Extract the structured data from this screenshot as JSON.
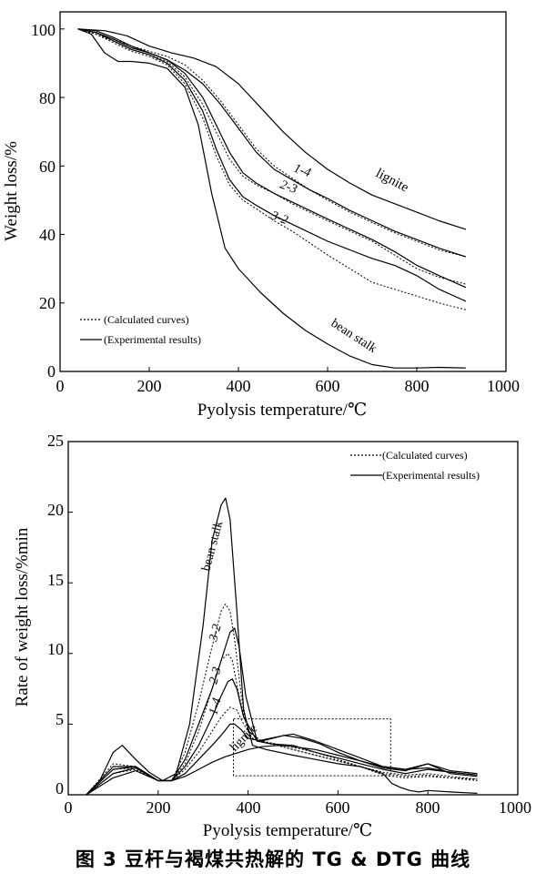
{
  "caption": "图 3   豆杆与褐煤共热解的 TG & DTG 曲线",
  "chart_data": [
    {
      "type": "line",
      "xlabel": "Pyolysis temperature/℃",
      "ylabel": "Weight loss/%",
      "xlim": [
        0,
        1000
      ],
      "ylim": [
        0,
        105
      ],
      "xticks": [
        "0",
        "200",
        "400",
        "600",
        "800",
        "1000"
      ],
      "yticks": [
        "0",
        "20",
        "40",
        "60",
        "80",
        "100"
      ],
      "grid": false,
      "legend_position": "bottom-left",
      "legend": [
        {
          "label": "(Calculated curves)",
          "style": "dotted"
        },
        {
          "label": "(Experimental results)",
          "style": "solid"
        }
      ],
      "series": [
        {
          "name": "lignite",
          "style": "solid",
          "x": [
            40,
            100,
            150,
            200,
            250,
            300,
            350,
            400,
            450,
            500,
            550,
            600,
            650,
            700,
            750,
            800,
            850,
            910
          ],
          "y": [
            100,
            99.5,
            98,
            95,
            93,
            91.5,
            89,
            84,
            77,
            70,
            64,
            59,
            55,
            51.5,
            49,
            46.5,
            44,
            41.5
          ]
        },
        {
          "name": "1-4",
          "style": "solid",
          "x": [
            40,
            80,
            120,
            160,
            200,
            240,
            280,
            320,
            360,
            400,
            440,
            480,
            520,
            560,
            600,
            650,
            700,
            750,
            800,
            850,
            910
          ],
          "y": [
            100,
            99.5,
            97.5,
            95,
            93,
            91,
            88,
            84,
            78,
            71,
            64,
            59,
            56,
            53,
            50.5,
            47,
            44,
            41,
            38.5,
            36,
            33.5
          ]
        },
        {
          "name": "1-4 calc",
          "style": "dotted",
          "x": [
            40,
            80,
            120,
            160,
            200,
            240,
            280,
            320,
            360,
            400,
            440,
            480,
            520,
            560,
            600,
            650,
            700,
            750,
            800,
            850,
            910
          ],
          "y": [
            100,
            99,
            97,
            95,
            93.5,
            92,
            89.5,
            85,
            79,
            72,
            65,
            60,
            56.5,
            53,
            50,
            46.5,
            43.5,
            40.5,
            38,
            35.5,
            33.5
          ]
        },
        {
          "name": "2-3",
          "style": "solid",
          "x": [
            40,
            80,
            120,
            160,
            200,
            240,
            280,
            320,
            350,
            380,
            410,
            440,
            480,
            520,
            560,
            600,
            650,
            700,
            750,
            800,
            850,
            910
          ],
          "y": [
            100,
            99,
            97,
            94.5,
            93,
            91,
            87,
            80,
            72,
            64,
            58,
            55,
            52,
            49.5,
            47,
            44.5,
            41.5,
            38.5,
            35,
            31,
            28,
            24.5
          ]
        },
        {
          "name": "2-3 calc",
          "style": "dotted",
          "x": [
            40,
            80,
            120,
            160,
            200,
            240,
            280,
            320,
            350,
            380,
            410,
            440,
            480,
            520,
            560,
            600,
            650,
            700,
            750,
            800,
            850,
            910
          ],
          "y": [
            100,
            98.5,
            96.5,
            94,
            92.5,
            90.5,
            86,
            78,
            70,
            62,
            57,
            54.5,
            52,
            49,
            46.5,
            44,
            41,
            38,
            34,
            30,
            27.5,
            25.5
          ]
        },
        {
          "name": "3-2",
          "style": "solid",
          "x": [
            40,
            80,
            120,
            160,
            200,
            240,
            280,
            320,
            350,
            380,
            410,
            440,
            480,
            520,
            560,
            600,
            650,
            700,
            750,
            800,
            850,
            910
          ],
          "y": [
            100,
            99,
            96.5,
            94,
            92.5,
            90,
            85,
            76,
            65,
            56,
            51,
            48.5,
            45.5,
            43,
            40.5,
            38,
            35.5,
            33,
            31,
            28,
            24,
            20.5
          ]
        },
        {
          "name": "3-2 calc",
          "style": "dotted",
          "x": [
            40,
            80,
            120,
            160,
            200,
            240,
            280,
            320,
            350,
            380,
            410,
            440,
            480,
            520,
            560,
            600,
            650,
            700,
            750,
            800,
            850,
            910
          ],
          "y": [
            100,
            98.5,
            96,
            93.5,
            92,
            89.5,
            84,
            74,
            63,
            54.5,
            50,
            47.5,
            44,
            41,
            37.5,
            34,
            30,
            26,
            24,
            22,
            20,
            18
          ]
        },
        {
          "name": "bean stalk",
          "style": "solid",
          "x": [
            40,
            70,
            100,
            130,
            160,
            200,
            240,
            280,
            310,
            340,
            370,
            400,
            450,
            500,
            550,
            600,
            650,
            700,
            750,
            800,
            850,
            910
          ],
          "y": [
            100,
            98.5,
            93,
            90.5,
            90.5,
            90,
            88.5,
            83,
            72,
            52,
            36,
            30,
            23,
            17,
            12,
            8,
            4.5,
            2,
            1,
            1,
            1.2,
            1
          ]
        }
      ],
      "curve_labels": [
        "1-4",
        "2-3",
        "3-2",
        "lignite",
        "bean stalk"
      ]
    },
    {
      "type": "line",
      "xlabel": "Pyolysis temperature/℃",
      "ylabel": "Rate of weight loss/%min",
      "xlim": [
        0,
        1000
      ],
      "ylim": [
        0,
        25
      ],
      "xticks": [
        "0",
        "200",
        "400",
        "600",
        "800",
        "1000"
      ],
      "yticks": [
        "0",
        "5",
        "10",
        "15",
        "20",
        "25"
      ],
      "grid": false,
      "legend_position": "top-right",
      "legend": [
        {
          "label": "(Calculated curves)",
          "style": "dotted"
        },
        {
          "label": "(Experimental results)",
          "style": "solid"
        }
      ],
      "annotation_box": {
        "x": [
          370,
          680
        ],
        "y": [
          1,
          5.3
        ]
      },
      "series": [
        {
          "name": "bean stalk",
          "style": "solid",
          "x": [
            40,
            70,
            100,
            120,
            150,
            180,
            210,
            240,
            270,
            300,
            320,
            340,
            350,
            360,
            375,
            390,
            410,
            440,
            500,
            550,
            600,
            650,
            700,
            720,
            740,
            760,
            780,
            800,
            850,
            910
          ],
          "y": [
            0,
            1,
            3,
            3.5,
            2.5,
            1.6,
            1,
            1.5,
            5,
            12,
            18,
            20.5,
            21,
            19.5,
            13,
            6,
            3.5,
            3.2,
            2.8,
            2.5,
            2.2,
            2,
            1.5,
            0.8,
            0.5,
            0.3,
            0.2,
            0.3,
            0.2,
            0.1
          ]
        },
        {
          "name": "3-2",
          "style": "solid",
          "x": [
            40,
            100,
            150,
            200,
            230,
            260,
            290,
            320,
            340,
            360,
            370,
            380,
            395,
            420,
            450,
            500,
            550,
            600,
            650,
            700,
            750,
            800,
            850,
            910
          ],
          "y": [
            0,
            2,
            2,
            1,
            1,
            2.5,
            5,
            7.5,
            9.5,
            11.5,
            11.8,
            10.5,
            7,
            3.8,
            3.6,
            3.5,
            3,
            2.6,
            2.2,
            1.8,
            1.5,
            1.8,
            1.6,
            1.4
          ]
        },
        {
          "name": "3-2 calc",
          "style": "dotted",
          "x": [
            40,
            100,
            150,
            200,
            230,
            260,
            290,
            320,
            340,
            350,
            360,
            370,
            385,
            400,
            430,
            480,
            550,
            600,
            650,
            700,
            750,
            800,
            850,
            910
          ],
          "y": [
            0,
            2.2,
            2,
            1,
            1,
            3,
            6.5,
            10.5,
            13,
            13.5,
            13,
            11,
            7,
            4.5,
            3.8,
            3.5,
            3,
            2.5,
            2,
            1.4,
            1.2,
            1.3,
            1.2,
            1.1
          ]
        },
        {
          "name": "2-3",
          "style": "solid",
          "x": [
            40,
            100,
            150,
            200,
            230,
            260,
            290,
            320,
            340,
            355,
            365,
            375,
            390,
            420,
            480,
            500,
            550,
            600,
            650,
            700,
            750,
            800,
            850,
            910
          ],
          "y": [
            0,
            1.8,
            2,
            1,
            1,
            2,
            3.5,
            5.5,
            7,
            8,
            8.2,
            7.5,
            5.5,
            3.8,
            4.2,
            4.3,
            3.8,
            3.2,
            2.6,
            2,
            1.8,
            2.2,
            1.7,
            1.5
          ]
        },
        {
          "name": "2-3 calc",
          "style": "dotted",
          "x": [
            40,
            100,
            150,
            200,
            230,
            260,
            290,
            320,
            340,
            355,
            365,
            380,
            400,
            430,
            500,
            550,
            600,
            650,
            700,
            750,
            800,
            850,
            910
          ],
          "y": [
            0,
            1.8,
            1.9,
            1,
            1,
            2.2,
            4.5,
            7.5,
            9.5,
            10,
            9.5,
            7,
            4.5,
            3.8,
            3.2,
            2.8,
            2.4,
            2,
            1.6,
            1.4,
            1.5,
            1.3,
            1.1
          ]
        },
        {
          "name": "1-4",
          "style": "solid",
          "x": [
            40,
            100,
            150,
            200,
            230,
            260,
            290,
            320,
            340,
            360,
            370,
            385,
            400,
            430,
            480,
            520,
            560,
            600,
            650,
            700,
            750,
            800,
            850,
            910
          ],
          "y": [
            0,
            1.5,
            1.9,
            1,
            1,
            1.5,
            2.5,
            3.5,
            4.2,
            5,
            5,
            4.6,
            4,
            3.8,
            4.2,
            4,
            3.6,
            3,
            2.4,
            1.9,
            1.7,
            2.2,
            1.5,
            1.3
          ]
        },
        {
          "name": "1-4 calc",
          "style": "dotted",
          "x": [
            40,
            100,
            150,
            200,
            230,
            260,
            290,
            320,
            340,
            360,
            375,
            390,
            410,
            440,
            500,
            550,
            600,
            650,
            700,
            750,
            800,
            850,
            910
          ],
          "y": [
            0,
            1.5,
            1.8,
            1,
            1,
            1.8,
            3,
            4.5,
            5.5,
            6.2,
            6,
            5,
            4,
            3.7,
            3.2,
            2.8,
            2.4,
            2,
            1.5,
            1.3,
            1.4,
            1.2,
            1
          ]
        },
        {
          "name": "lignite",
          "style": "solid",
          "x": [
            40,
            100,
            150,
            200,
            230,
            260,
            290,
            320,
            350,
            380,
            400,
            430,
            470,
            500,
            550,
            600,
            650,
            700,
            750,
            800,
            850,
            910
          ],
          "y": [
            0,
            1.2,
            1.7,
            1,
            1,
            1.3,
            1.8,
            2.3,
            2.7,
            3,
            3.2,
            3.4,
            3.5,
            3.4,
            3.2,
            2.8,
            2.4,
            2,
            1.8,
            1.9,
            1.6,
            1.4
          ]
        }
      ],
      "curve_labels": [
        "bean stalk",
        "3-2",
        "2-3",
        "1-4",
        "lignite"
      ]
    }
  ]
}
